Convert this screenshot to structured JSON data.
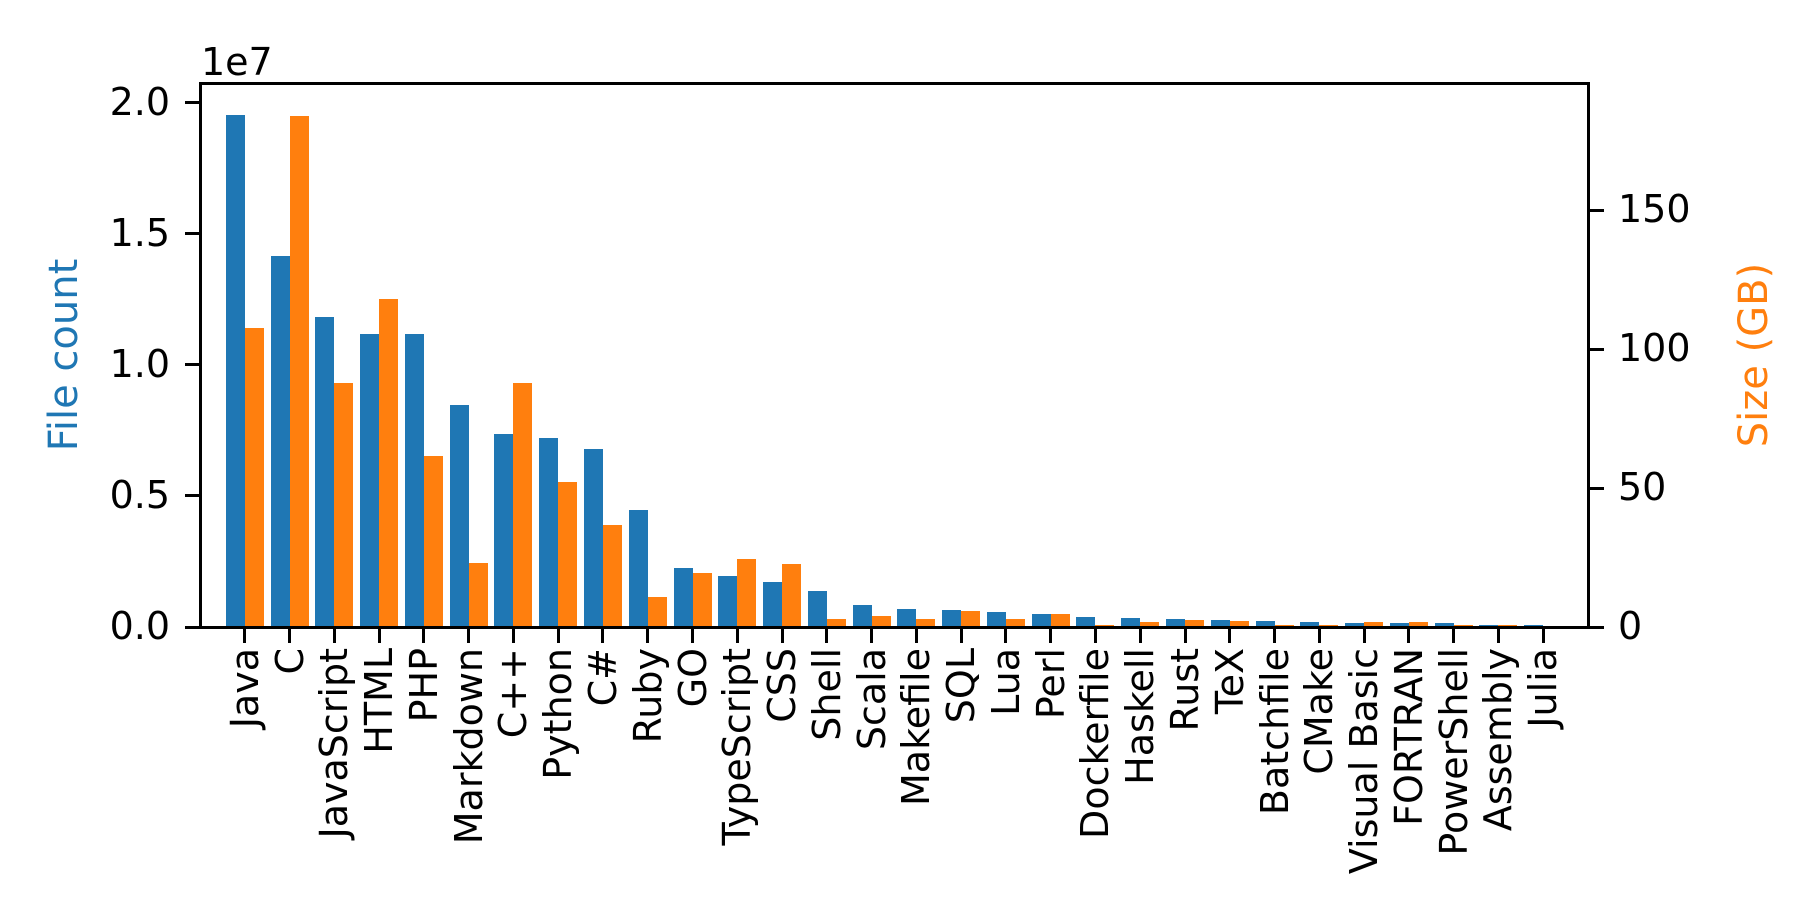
{
  "chart_data": {
    "type": "bar",
    "title": "",
    "categories": [
      "Java",
      "C",
      "JavaScript",
      "HTML",
      "PHP",
      "Markdown",
      "C++",
      "Python",
      "C#",
      "Ruby",
      "GO",
      "TypeScript",
      "CSS",
      "Shell",
      "Scala",
      "Makefile",
      "SQL",
      "Lua",
      "Perl",
      "Dockerfile",
      "Haskell",
      "Rust",
      "TeX",
      "Batchfile",
      "CMake",
      "Visual Basic",
      "FORTRAN",
      "PowerShell",
      "Assembly",
      "Julia"
    ],
    "series": [
      {
        "name": "File count",
        "axis": "left",
        "color": "#1f77b4",
        "values": [
          19548190,
          14143113,
          11839883,
          11178557,
          11177610,
          8464626,
          7380520,
          7226626,
          6811652,
          4473331,
          2265436,
          1940406,
          1734406,
          1385648,
          835755,
          679430,
          656671,
          578554,
          497949,
          366505,
          340623,
          322431,
          251015,
          236945,
          175282,
          155652,
          142038,
          136846,
          82905,
          58317
        ]
      },
      {
        "name": "Size (GB)",
        "axis": "right",
        "color": "#ff7f0e",
        "values": [
          107.7,
          183.83,
          87.82,
          118.12,
          61.41,
          23.09,
          87.73,
          52.03,
          36.83,
          10.95,
          19.28,
          24.59,
          22.67,
          3.01,
          3.87,
          2.92,
          5.67,
          2.81,
          4.7,
          0.71,
          1.85,
          2.68,
          2.15,
          0.7,
          0.54,
          1.91,
          1.62,
          0.69,
          0.78,
          0.29
        ]
      }
    ],
    "xlabel": "",
    "ylabel_left": "File count",
    "ylabel_right": "Size (GB)",
    "ylim_left": [
      0,
      20760000
    ],
    "ylim_right": [
      0,
      195.7
    ],
    "yticks_left": {
      "values": [
        0,
        5000000,
        10000000,
        15000000,
        20000000
      ],
      "labels": [
        "0.0",
        "0.5",
        "1.0",
        "1.5",
        "2.0"
      ],
      "offset_text": "1e7"
    },
    "yticks_right": {
      "values": [
        0,
        50,
        100,
        150
      ],
      "labels": [
        "0",
        "50",
        "100",
        "150"
      ]
    },
    "x_tick_rotation_deg": 90,
    "grid": false,
    "legend": false,
    "colors": {
      "file_count": "#1f77b4",
      "size_gb": "#ff7f0e",
      "axis": "#000000",
      "background": "#ffffff"
    }
  }
}
